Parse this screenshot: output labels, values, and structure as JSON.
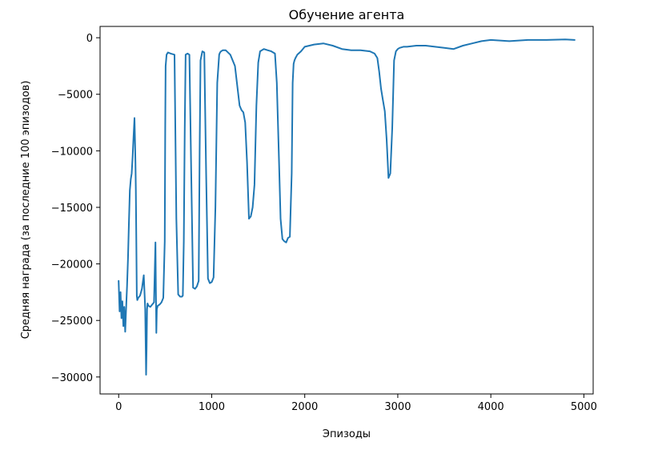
{
  "chart_data": {
    "type": "line",
    "title": "Обучение агента",
    "xlabel": "Эпизоды",
    "ylabel": "Средняя награда (за последние 100 эпизодов)",
    "xlim": [
      -200,
      5100
    ],
    "ylim": [
      -31500,
      1000
    ],
    "xticks": [
      0,
      1000,
      2000,
      3000,
      4000,
      5000
    ],
    "yticks": [
      0,
      -5000,
      -10000,
      -15000,
      -20000,
      -25000,
      -30000
    ],
    "xtick_labels": [
      "0",
      "1000",
      "2000",
      "3000",
      "4000",
      "5000"
    ],
    "ytick_labels": [
      "0",
      "−5000",
      "−10000",
      "−15000",
      "−20000",
      "−25000",
      "−30000"
    ],
    "grid": false,
    "series": [
      {
        "color": "#1f77b4",
        "x": [
          0,
          10,
          20,
          30,
          40,
          50,
          60,
          70,
          80,
          90,
          100,
          110,
          120,
          130,
          140,
          150,
          160,
          170,
          175,
          180,
          185,
          190,
          195,
          200,
          210,
          230,
          250,
          270,
          285,
          295,
          300,
          305,
          310,
          320,
          340,
          360,
          380,
          395,
          400,
          405,
          410,
          420,
          440,
          460,
          480,
          495,
          500,
          505,
          515,
          530,
          560,
          600,
          620,
          640,
          660,
          680,
          690,
          700,
          710,
          720,
          740,
          760,
          780,
          800,
          820,
          840,
          860,
          870,
          880,
          900,
          920,
          940,
          960,
          980,
          1000,
          1020,
          1040,
          1060,
          1080,
          1090,
          1100,
          1120,
          1150,
          1200,
          1250,
          1300,
          1320,
          1340,
          1360,
          1380,
          1400,
          1410,
          1420,
          1440,
          1460,
          1480,
          1500,
          1520,
          1560,
          1600,
          1640,
          1680,
          1700,
          1720,
          1740,
          1760,
          1780,
          1800,
          1820,
          1840,
          1860,
          1870,
          1880,
          1890,
          1900,
          1920,
          1960,
          2000,
          2100,
          2200,
          2300,
          2400,
          2500,
          2600,
          2700,
          2750,
          2780,
          2800,
          2820,
          2840,
          2860,
          2880,
          2900,
          2920,
          2940,
          2960,
          2980,
          3000,
          3020,
          3060,
          3100,
          3200,
          3300,
          3400,
          3500,
          3600,
          3700,
          3800,
          3900,
          4000,
          4200,
          4400,
          4600,
          4800,
          4900
        ],
        "y": [
          -21500,
          -24200,
          -22500,
          -24800,
          -23300,
          -25500,
          -23800,
          -26000,
          -24000,
          -22000,
          -19500,
          -16500,
          -13500,
          -12500,
          -12000,
          -10500,
          -8800,
          -7100,
          -9000,
          -11000,
          -13500,
          -18000,
          -22800,
          -23200,
          -23000,
          -22800,
          -22200,
          -21000,
          -24000,
          -29800,
          -27500,
          -24000,
          -23500,
          -23700,
          -23800,
          -23600,
          -23400,
          -18100,
          -22000,
          -26100,
          -24000,
          -23700,
          -23600,
          -23400,
          -23000,
          -18000,
          -8000,
          -2500,
          -1500,
          -1300,
          -1400,
          -1500,
          -16000,
          -22700,
          -22900,
          -22900,
          -22800,
          -18000,
          -8000,
          -1500,
          -1400,
          -1500,
          -12000,
          -22100,
          -22200,
          -22000,
          -21500,
          -10000,
          -2000,
          -1200,
          -1300,
          -12000,
          -21300,
          -21700,
          -21600,
          -21200,
          -15000,
          -4000,
          -1500,
          -1300,
          -1200,
          -1100,
          -1100,
          -1500,
          -2500,
          -6000,
          -6400,
          -6600,
          -7500,
          -11000,
          -16000,
          -15900,
          -15800,
          -15000,
          -13000,
          -6000,
          -2200,
          -1200,
          -1000,
          -1100,
          -1200,
          -1400,
          -4000,
          -10000,
          -16000,
          -17800,
          -18000,
          -18100,
          -17700,
          -17600,
          -12000,
          -4000,
          -2300,
          -2000,
          -1800,
          -1500,
          -1200,
          -800,
          -600,
          -500,
          -700,
          -1000,
          -1100,
          -1100,
          -1200,
          -1400,
          -1800,
          -3000,
          -4500,
          -5500,
          -6500,
          -9000,
          -12400,
          -12000,
          -8000,
          -2000,
          -1200,
          -1000,
          -900,
          -800,
          -800,
          -700,
          -700,
          -800,
          -900,
          -1000,
          -700,
          -500,
          -300,
          -200,
          -300,
          -200,
          -200,
          -150,
          -200
        ]
      }
    ]
  }
}
